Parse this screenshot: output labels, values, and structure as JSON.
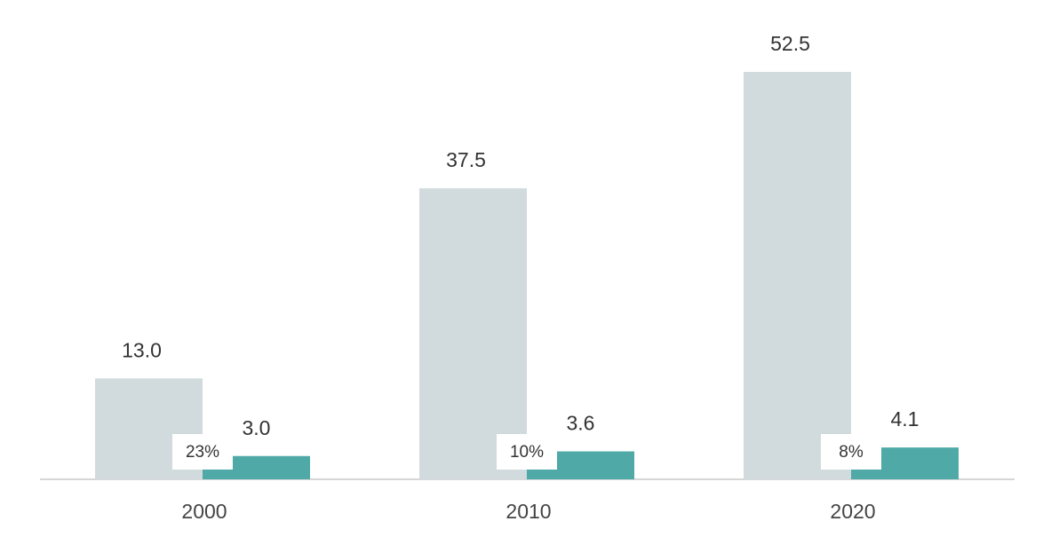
{
  "chart_data": {
    "type": "bar",
    "categories": [
      "2000",
      "2010",
      "2020"
    ],
    "series": [
      {
        "color": "#d1dbde",
        "values": [
          13.0,
          37.5,
          52.5
        ],
        "value_labels": [
          "13.0",
          "37.5",
          "52.5"
        ]
      },
      {
        "color": "#4fa9a6",
        "values": [
          3.0,
          3.6,
          4.1
        ],
        "value_labels": [
          "3.0",
          "3.6",
          "4.1"
        ]
      }
    ],
    "annotations": [
      "23%",
      "10%",
      "8%"
    ]
  }
}
